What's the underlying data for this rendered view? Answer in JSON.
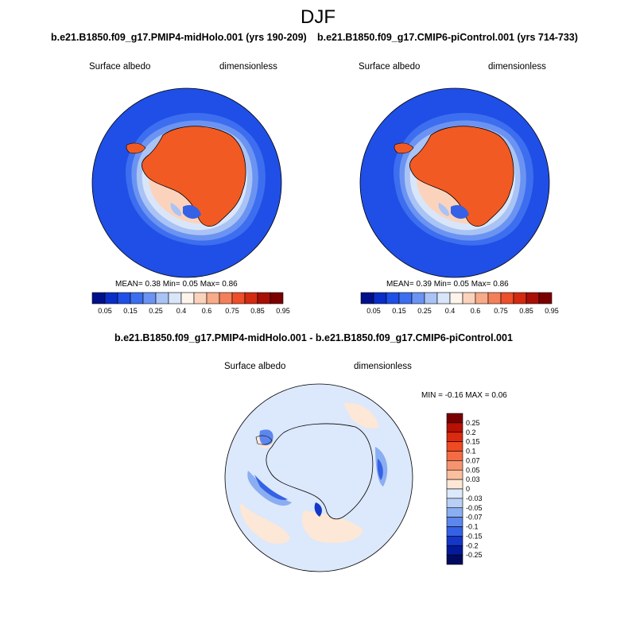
{
  "season": "DJF",
  "panels": {
    "left": {
      "title": "b.e21.B1850.f09_g17.PMIP4-midHolo.001 (yrs 190-209)",
      "variable": "Surface albedo",
      "units": "dimensionless",
      "stats_label": "MEAN=   0.38  Min=   0.05  Max=   0.86",
      "mean": 0.38,
      "min": 0.05,
      "max": 0.86
    },
    "right": {
      "title": "b.e21.B1850.f09_g17.CMIP6-piControl.001 (yrs 714-733)",
      "variable": "Surface albedo",
      "units": "dimensionless",
      "stats_label": "MEAN=   0.39  Min=   0.05  Max=   0.86",
      "mean": 0.39,
      "min": 0.05,
      "max": 0.86
    },
    "diff": {
      "title": "b.e21.B1850.f09_g17.PMIP4-midHolo.001 - b.e21.B1850.f09_g17.CMIP6-piControl.001",
      "variable": "Surface albedo",
      "units": "dimensionless",
      "stats_label": "MIN =   -0.16  MAX =   0.06",
      "min": -0.16,
      "max": 0.06
    }
  },
  "colorbar_abs": {
    "labels": [
      "0.05",
      "0.15",
      "0.25",
      "0.4",
      "0.6",
      "0.75",
      "0.85",
      "0.95"
    ],
    "colors": [
      "#00108a",
      "#0a2dc8",
      "#1f4fe6",
      "#3d6eef",
      "#6b93f2",
      "#a9c3f5",
      "#d9e6fa",
      "#fdf4ec",
      "#fbd3bd",
      "#f8ab88",
      "#f3805a",
      "#ec4f2a",
      "#d42a12",
      "#a80f05",
      "#7a0000"
    ]
  },
  "colorbar_diff": {
    "labels": [
      "0.25",
      "0.2",
      "0.15",
      "0.1",
      "0.07",
      "0.05",
      "0.03",
      "0",
      "-0.03",
      "-0.05",
      "-0.07",
      "-0.1",
      "-0.15",
      "-0.2",
      "-0.25"
    ],
    "colors": [
      "#7a0000",
      "#b81004",
      "#dc2a0e",
      "#ef4a22",
      "#f46c43",
      "#f79470",
      "#fbbf9d",
      "#fde7d6",
      "#dce8fb",
      "#b9cff6",
      "#8aaef1",
      "#5d87ed",
      "#3461e6",
      "#1437c8",
      "#04199c",
      "#000a5e"
    ]
  },
  "colors": {
    "ocean_blue": "#1f4fe6",
    "ice_land": "#f25a24",
    "neutral_diff": "#dce8fb"
  }
}
